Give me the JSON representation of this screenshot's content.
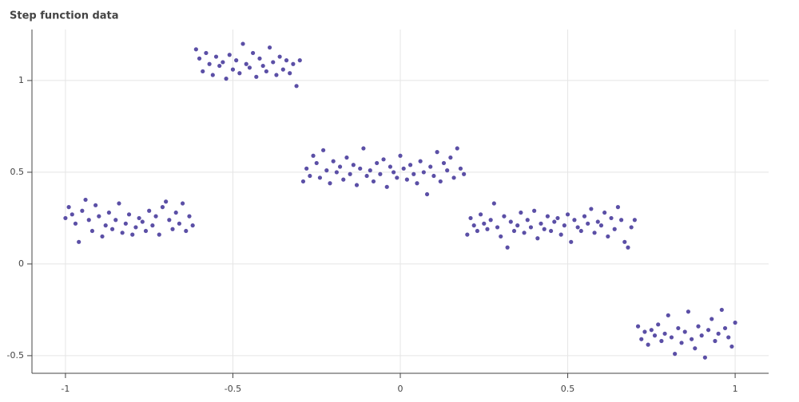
{
  "chart_data": {
    "type": "scatter",
    "title": "Step function data",
    "color": "#5b4fa6",
    "grid": true,
    "xlim": [
      -1.1,
      1.1
    ],
    "ylim": [
      -0.596,
      1.278
    ],
    "xticks": [
      -1,
      -0.5,
      0,
      0.5,
      1
    ],
    "yticks": [
      -0.5,
      0,
      0.5,
      1
    ],
    "x": [
      -1,
      -0.99,
      -0.98,
      -0.97,
      -0.96,
      -0.95,
      -0.94,
      -0.93,
      -0.92,
      -0.91,
      -0.9,
      -0.89,
      -0.88,
      -0.87,
      -0.86,
      -0.85,
      -0.84,
      -0.83,
      -0.82,
      -0.81,
      -0.8,
      -0.79,
      -0.78,
      -0.77,
      -0.76,
      -0.75,
      -0.74,
      -0.73,
      -0.72,
      -0.71,
      -0.7,
      -0.69,
      -0.68,
      -0.67,
      -0.66,
      -0.65,
      -0.64,
      -0.63,
      -0.62,
      -0.61,
      -0.6,
      -0.59,
      -0.58,
      -0.57,
      -0.56,
      -0.55,
      -0.54,
      -0.53,
      -0.52,
      -0.51,
      -0.5,
      -0.49,
      -0.48,
      -0.47,
      -0.46,
      -0.45,
      -0.44,
      -0.43,
      -0.42,
      -0.41,
      -0.4,
      -0.39,
      -0.38,
      -0.37,
      -0.36,
      -0.35,
      -0.34,
      -0.33,
      -0.32,
      -0.31,
      -0.3,
      -0.29,
      -0.28,
      -0.27,
      -0.26,
      -0.25,
      -0.24,
      -0.23,
      -0.22,
      -0.21,
      -0.2,
      -0.19,
      -0.18,
      -0.17,
      -0.16,
      -0.15,
      -0.14,
      -0.13,
      -0.12,
      -0.11,
      -0.1,
      -0.09,
      -0.08,
      -0.07,
      -0.06,
      -0.05,
      -0.04,
      -0.03,
      -0.02,
      -0.01,
      0,
      0.01,
      0.02,
      0.03,
      0.04,
      0.05,
      0.06,
      0.07,
      0.08,
      0.09,
      0.1,
      0.11,
      0.12,
      0.13,
      0.14,
      0.15,
      0.16,
      0.17,
      0.18,
      0.19,
      0.2,
      0.21,
      0.22,
      0.23,
      0.24,
      0.25,
      0.26,
      0.27,
      0.28,
      0.29,
      0.3,
      0.31,
      0.32,
      0.33,
      0.34,
      0.35,
      0.36,
      0.37,
      0.38,
      0.39,
      0.4,
      0.41,
      0.42,
      0.43,
      0.44,
      0.45,
      0.46,
      0.47,
      0.48,
      0.49,
      0.5,
      0.51,
      0.52,
      0.53,
      0.54,
      0.55,
      0.56,
      0.57,
      0.58,
      0.59,
      0.6,
      0.61,
      0.62,
      0.63,
      0.64,
      0.65,
      0.66,
      0.67,
      0.68,
      0.69,
      0.7,
      0.71,
      0.72,
      0.73,
      0.74,
      0.75,
      0.76,
      0.77,
      0.78,
      0.79,
      0.8,
      0.81,
      0.82,
      0.83,
      0.84,
      0.85,
      0.86,
      0.87,
      0.88,
      0.89,
      0.9,
      0.91,
      0.92,
      0.93,
      0.94,
      0.95,
      0.96,
      0.97,
      0.98,
      0.99,
      1
    ],
    "y": [
      0.25,
      0.31,
      0.27,
      0.22,
      0.12,
      0.29,
      0.35,
      0.24,
      0.18,
      0.32,
      0.26,
      0.15,
      0.21,
      0.28,
      0.19,
      0.24,
      0.33,
      0.17,
      0.22,
      0.27,
      0.16,
      0.2,
      0.25,
      0.23,
      0.18,
      0.29,
      0.21,
      0.26,
      0.16,
      0.31,
      0.34,
      0.24,
      0.19,
      0.28,
      0.22,
      0.33,
      0.18,
      0.26,
      0.21,
      1.17,
      1.12,
      1.05,
      1.15,
      1.09,
      1.03,
      1.13,
      1.08,
      1.1,
      1.01,
      1.14,
      1.06,
      1.11,
      1.04,
      1.2,
      1.09,
      1.07,
      1.15,
      1.02,
      1.12,
      1.08,
      1.05,
      1.18,
      1.1,
      1.03,
      1.13,
      1.06,
      1.11,
      1.04,
      1.09,
      0.97,
      1.11,
      0.45,
      0.52,
      0.48,
      0.59,
      0.55,
      0.47,
      0.62,
      0.51,
      0.44,
      0.56,
      0.5,
      0.53,
      0.46,
      0.58,
      0.49,
      0.54,
      0.43,
      0.52,
      0.63,
      0.48,
      0.51,
      0.45,
      0.55,
      0.49,
      0.57,
      0.42,
      0.53,
      0.5,
      0.47,
      0.59,
      0.52,
      0.46,
      0.54,
      0.49,
      0.44,
      0.56,
      0.5,
      0.38,
      0.53,
      0.48,
      0.61,
      0.45,
      0.55,
      0.51,
      0.58,
      0.47,
      0.63,
      0.52,
      0.49,
      0.16,
      0.25,
      0.21,
      0.18,
      0.27,
      0.22,
      0.19,
      0.24,
      0.33,
      0.2,
      0.15,
      0.26,
      0.09,
      0.23,
      0.18,
      0.21,
      0.28,
      0.17,
      0.24,
      0.2,
      0.29,
      0.14,
      0.22,
      0.19,
      0.26,
      0.18,
      0.23,
      0.25,
      0.16,
      0.21,
      0.27,
      0.12,
      0.24,
      0.2,
      0.18,
      0.26,
      0.22,
      0.3,
      0.17,
      0.23,
      0.21,
      0.28,
      0.15,
      0.25,
      0.19,
      0.31,
      0.24,
      0.12,
      0.09,
      0.2,
      0.24,
      -0.34,
      -0.41,
      -0.37,
      -0.44,
      -0.36,
      -0.39,
      -0.33,
      -0.42,
      -0.38,
      -0.28,
      -0.4,
      -0.49,
      -0.35,
      -0.43,
      -0.37,
      -0.26,
      -0.41,
      -0.46,
      -0.34,
      -0.39,
      -0.51,
      -0.36,
      -0.3,
      -0.42,
      -0.38,
      -0.25,
      -0.35,
      -0.4,
      -0.45,
      -0.32
    ]
  }
}
